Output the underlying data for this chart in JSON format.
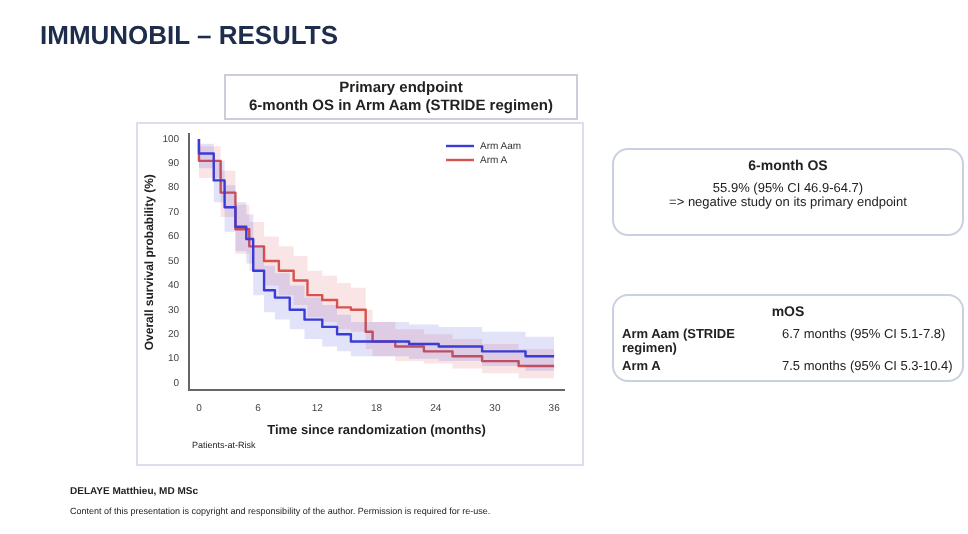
{
  "chart_data": {
    "type": "step",
    "title": "IMMUNOBIL – RESULTS",
    "subtitle": "Primary endpoint\n6-month OS in Arm Aam (STRIDE regimen)",
    "xlabel": "Time since randomization (months)",
    "ylabel": "Overall survival probability (%)",
    "series": [
      {
        "name": "Arm Aam",
        "color": "#3b3bd6",
        "x": [
          0,
          1.5,
          2.6,
          3.7,
          4.8,
          5.5,
          6.6,
          7.7,
          9.2,
          10.7,
          12.5,
          14,
          15.4,
          18.4,
          21.3,
          24.3,
          28.7,
          33.1,
          36
        ],
        "values": [
          100,
          94,
          83,
          72,
          64,
          59,
          46,
          38,
          35,
          30,
          26,
          23,
          20,
          17,
          17,
          16,
          15,
          13,
          11
        ],
        "lower": [
          100,
          88,
          74,
          62,
          54,
          49,
          36,
          29,
          26,
          22,
          18,
          15,
          13,
          11,
          11,
          10,
          9,
          7,
          5
        ],
        "upper": [
          100,
          98,
          91,
          81,
          74,
          69,
          56,
          48,
          45,
          40,
          35,
          32,
          28,
          25,
          25,
          24,
          23,
          21,
          19
        ]
      },
      {
        "name": "Arm A",
        "color": "#d9534f",
        "x": [
          0,
          2.2,
          3.7,
          5.1,
          6.6,
          8.1,
          9.6,
          11,
          12.5,
          14,
          15.4,
          16.9,
          17.6,
          19.9,
          22.8,
          25.7,
          28.7,
          32.4,
          36
        ],
        "values": [
          100,
          91,
          78,
          63,
          56,
          50,
          46,
          42,
          36,
          34,
          31,
          30,
          21,
          17,
          15,
          13,
          11,
          9,
          7
        ],
        "lower": [
          100,
          84,
          68,
          53,
          46,
          40,
          36,
          32,
          27,
          25,
          22,
          21,
          14,
          11,
          9,
          8,
          6,
          4,
          2
        ],
        "upper": [
          100,
          97,
          87,
          73,
          66,
          60,
          56,
          52,
          46,
          44,
          41,
          39,
          30,
          25,
          22,
          20,
          18,
          16,
          14
        ]
      }
    ],
    "xlim": [
      -1,
      37
    ],
    "xticks": [
      0,
      6,
      12,
      18,
      24,
      30,
      36
    ],
    "ylim": [
      -3,
      102
    ],
    "yticks": [
      0,
      10,
      20,
      30,
      40,
      50,
      60,
      70,
      80,
      90,
      100
    ],
    "grid": false,
    "legend": "top right",
    "marker": "none",
    "line_style": "solid",
    "annotations": [
      "6-month OS",
      "55.9% (95% CI 46.9-64.7)",
      "=> negative study on its primary endpoint",
      "mOS",
      "Arm Aam (STRIDE regimen)",
      "6.7 months (95% CI 5.1-7.8)",
      "Arm A",
      "7.5 months (95% CI 5.3-10.4)",
      "Patients-at-Risk",
      "DELAYE Matthieu, MD MSc",
      "Content of this presentation is copyright and responsibility of the author. Permission is required for re-use."
    ]
  }
}
